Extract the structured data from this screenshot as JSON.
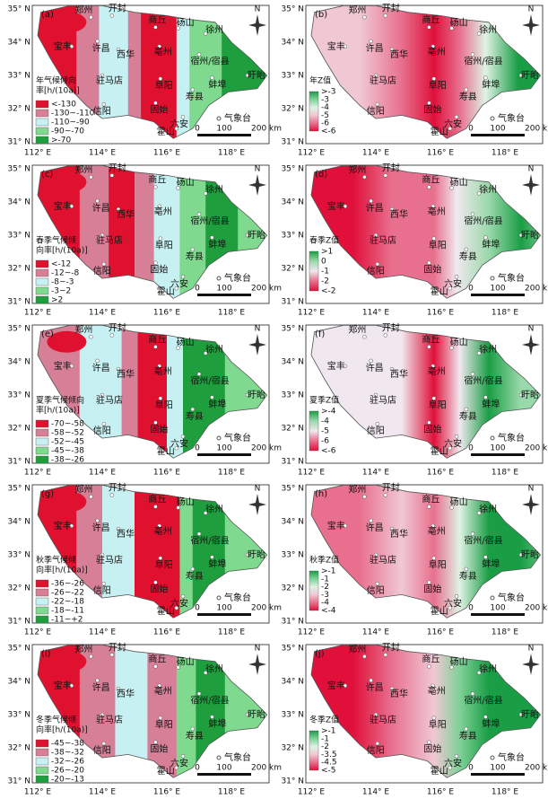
{
  "stations": [
    "郑州",
    "开封",
    "宝丰",
    "许昌",
    "西华",
    "商丘",
    "砀山",
    "徐州",
    "亳州",
    "宿州/宿县",
    "驻马店",
    "阜阳",
    "蚌埠",
    "盱眙",
    "寿县",
    "固始",
    "信阳",
    "六安",
    "霍山"
  ],
  "north": "N",
  "observatory": "气象台",
  "scale": [
    "0",
    "100",
    "200 km"
  ],
  "lat_ticks": [
    "35° N",
    "34° N",
    "33° N",
    "32° N",
    "31° N"
  ],
  "lon_ticks": [
    "112° E",
    "114° E",
    "116° E",
    "118° E"
  ],
  "panels": [
    {
      "label": "(a)",
      "legend_title": [
        "年气候倾向",
        "率[h/(10a)]"
      ],
      "legend": [
        "<-130",
        "-130~-110",
        "-110~-90",
        "-90~-70",
        ">-70"
      ],
      "colors": [
        "#e0102f",
        "#d67f97",
        "#c7f0f2",
        "#7fd98f",
        "#1f9e3e"
      ]
    },
    {
      "label": "(b)",
      "legend_title": [
        "年Z值"
      ],
      "legend": [
        ">-3",
        "-3",
        "-4",
        "-5",
        "-6",
        "<-6"
      ],
      "colors": [
        "#1a9e45",
        "#7fd198",
        "#dff2e4",
        "#f0c8d4",
        "#e8708e",
        "#e0103a"
      ]
    },
    {
      "label": "(c)",
      "legend_title": [
        "春季气候倾",
        "向率[h/(10a)]"
      ],
      "legend": [
        "<-12",
        "-12~-8",
        "-8~-3",
        "-3~2",
        ">2"
      ],
      "colors": [
        "#e0102f",
        "#d67f97",
        "#c7f0f2",
        "#7fd98f",
        "#1f9e3e"
      ]
    },
    {
      "label": "(d)",
      "legend_title": [
        "春季Z值"
      ],
      "legend": [
        ">1",
        "0",
        "-1",
        "-2",
        "<-2"
      ],
      "colors": [
        "#1a9e45",
        "#9ad9ab",
        "#f0e8ee",
        "#e8708e",
        "#e0103a"
      ]
    },
    {
      "label": "(e)",
      "legend_title": [
        "夏季气候倾向",
        "率[h/(10a)]"
      ],
      "legend": [
        "-70~-58",
        "-58~-52",
        "-52~-45",
        "-45~-38",
        "-38~-26"
      ],
      "colors": [
        "#e0102f",
        "#d67f97",
        "#c7f0f2",
        "#7fd98f",
        "#1f9e3e"
      ]
    },
    {
      "label": "(f)",
      "legend_title": [
        "夏季Z值"
      ],
      "legend": [
        ">-4",
        "-4",
        "-5",
        "-6",
        "<-6"
      ],
      "colors": [
        "#1a9e45",
        "#9ad9ab",
        "#f0e8ee",
        "#e8708e",
        "#e0103a"
      ]
    },
    {
      "label": "(g)",
      "legend_title": [
        "秋季气候倾",
        "向率[h/(10a)]"
      ],
      "legend": [
        "-36~-26",
        "-26~-22",
        "-22~-18",
        "-18~-11",
        "-11~+2"
      ],
      "colors": [
        "#e0102f",
        "#d67f97",
        "#c7f0f2",
        "#7fd98f",
        "#1f9e3e"
      ]
    },
    {
      "label": "(h)",
      "legend_title": [
        "秋季Z值"
      ],
      "legend": [
        ">-1",
        "-1",
        "-2",
        "-3",
        "-4",
        "<-4"
      ],
      "colors": [
        "#1a9e45",
        "#7fd198",
        "#dff2e4",
        "#f0c8d4",
        "#e8708e",
        "#e0103a"
      ]
    },
    {
      "label": "(i)",
      "legend_title": [
        "冬季气候倾",
        "向率[h/(10a)]"
      ],
      "legend": [
        "-45~-38",
        "-38~-32",
        "-32~-26",
        "-26~-20",
        "-20~-13"
      ],
      "colors": [
        "#e0102f",
        "#d67f97",
        "#c7f0f2",
        "#7fd98f",
        "#1f9e3e"
      ]
    },
    {
      "label": "(j)",
      "legend_title": [
        "冬季Z值"
      ],
      "legend": [
        ">-1",
        "-1",
        "-2",
        "-3.5",
        "-4.5",
        "<-5"
      ],
      "colors": [
        "#1a9e45",
        "#7fd198",
        "#dff2e4",
        "#f0c8d4",
        "#e8708e",
        "#e0103a"
      ]
    }
  ]
}
